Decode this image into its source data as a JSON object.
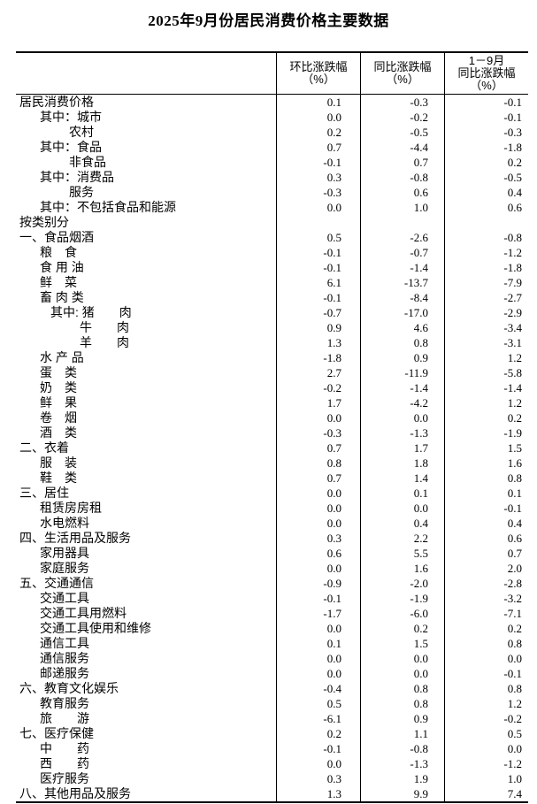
{
  "title": "2025年9月份居民消费价格主要数据",
  "table": {
    "header": {
      "mom": [
        "环比涨跌幅",
        "（%）"
      ],
      "yoy": [
        "同比涨跌幅",
        "（%）"
      ],
      "ytd": [
        "1－9月",
        "同比涨跌幅",
        "（%）"
      ]
    },
    "rows": [
      {
        "label": "居民消费价格",
        "indent": 0,
        "mom": "0.1",
        "yoy": "-0.3",
        "ytd": "-0.1"
      },
      {
        "label": "其中：城市",
        "indent": 1,
        "mom": "0.0",
        "yoy": "-0.2",
        "ytd": "-0.1"
      },
      {
        "label": "农村",
        "indent": 3,
        "mom": "0.2",
        "yoy": "-0.5",
        "ytd": "-0.3"
      },
      {
        "label": "其中：食品",
        "indent": 1,
        "mom": "0.7",
        "yoy": "-4.4",
        "ytd": "-1.8"
      },
      {
        "label": "非食品",
        "indent": 3,
        "mom": "-0.1",
        "yoy": "0.7",
        "ytd": "0.2"
      },
      {
        "label": "其中：消费品",
        "indent": 1,
        "mom": "0.3",
        "yoy": "-0.8",
        "ytd": "-0.5"
      },
      {
        "label": "服务",
        "indent": 3,
        "mom": "-0.3",
        "yoy": "0.6",
        "ytd": "0.4"
      },
      {
        "label": "其中：不包括食品和能源",
        "indent": 1,
        "mom": "0.0",
        "yoy": "1.0",
        "ytd": "0.6"
      },
      {
        "label": "按类别分",
        "indent": 0,
        "mom": "",
        "yoy": "",
        "ytd": ""
      },
      {
        "label": "一、食品烟酒",
        "indent": 0,
        "mom": "0.5",
        "yoy": "-2.6",
        "ytd": "-0.8"
      },
      {
        "label": "粮　食",
        "indent": 1,
        "mom": "-0.1",
        "yoy": "-0.7",
        "ytd": "-1.2"
      },
      {
        "label": "食 用 油",
        "indent": 1,
        "mom": "-0.1",
        "yoy": "-1.4",
        "ytd": "-1.8"
      },
      {
        "label": "鲜　菜",
        "indent": 1,
        "mom": "6.1",
        "yoy": "-13.7",
        "ytd": "-7.9"
      },
      {
        "label": "畜 肉 类",
        "indent": 1,
        "mom": "-0.1",
        "yoy": "-8.4",
        "ytd": "-2.7"
      },
      {
        "label": "其中: 猪　　肉",
        "indent": 2,
        "mom": "-0.7",
        "yoy": "-17.0",
        "ytd": "-2.9"
      },
      {
        "label": "牛　　肉",
        "indent": 4,
        "mom": "0.9",
        "yoy": "4.6",
        "ytd": "-3.4"
      },
      {
        "label": "羊　　肉",
        "indent": 4,
        "mom": "1.3",
        "yoy": "0.8",
        "ytd": "-3.1"
      },
      {
        "label": "水 产 品",
        "indent": 1,
        "mom": "-1.8",
        "yoy": "0.9",
        "ytd": "1.2"
      },
      {
        "label": "蛋　类",
        "indent": 1,
        "mom": "2.7",
        "yoy": "-11.9",
        "ytd": "-5.8"
      },
      {
        "label": "奶　类",
        "indent": 1,
        "mom": "-0.2",
        "yoy": "-1.4",
        "ytd": "-1.4"
      },
      {
        "label": "鲜　果",
        "indent": 1,
        "mom": "1.7",
        "yoy": "-4.2",
        "ytd": "1.2"
      },
      {
        "label": "卷　烟",
        "indent": 1,
        "mom": "0.0",
        "yoy": "0.0",
        "ytd": "0.2"
      },
      {
        "label": "酒　类",
        "indent": 1,
        "mom": "-0.3",
        "yoy": "-1.3",
        "ytd": "-1.9"
      },
      {
        "label": "二、衣着",
        "indent": 0,
        "mom": "0.7",
        "yoy": "1.7",
        "ytd": "1.5"
      },
      {
        "label": "服　装",
        "indent": 1,
        "mom": "0.8",
        "yoy": "1.8",
        "ytd": "1.6"
      },
      {
        "label": "鞋　类",
        "indent": 1,
        "mom": "0.7",
        "yoy": "1.4",
        "ytd": "0.8"
      },
      {
        "label": "三、居住",
        "indent": 0,
        "mom": "0.0",
        "yoy": "0.1",
        "ytd": "0.1"
      },
      {
        "label": "租赁房房租",
        "indent": 1,
        "mom": "0.0",
        "yoy": "0.0",
        "ytd": "-0.1"
      },
      {
        "label": "水电燃料",
        "indent": 1,
        "mom": "0.0",
        "yoy": "0.4",
        "ytd": "0.4"
      },
      {
        "label": "四、生活用品及服务",
        "indent": 0,
        "mom": "0.3",
        "yoy": "2.2",
        "ytd": "0.6"
      },
      {
        "label": "家用器具",
        "indent": 1,
        "mom": "0.6",
        "yoy": "5.5",
        "ytd": "0.7"
      },
      {
        "label": "家庭服务",
        "indent": 1,
        "mom": "0.0",
        "yoy": "1.6",
        "ytd": "2.0"
      },
      {
        "label": "五、交通通信",
        "indent": 0,
        "mom": "-0.9",
        "yoy": "-2.0",
        "ytd": "-2.8"
      },
      {
        "label": "交通工具",
        "indent": 1,
        "mom": "-0.1",
        "yoy": "-1.9",
        "ytd": "-3.2"
      },
      {
        "label": "交通工具用燃料",
        "indent": 1,
        "mom": "-1.7",
        "yoy": "-6.0",
        "ytd": "-7.1"
      },
      {
        "label": "交通工具使用和维修",
        "indent": 1,
        "mom": "0.0",
        "yoy": "0.2",
        "ytd": "0.2"
      },
      {
        "label": "通信工具",
        "indent": 1,
        "mom": "0.1",
        "yoy": "1.5",
        "ytd": "0.8"
      },
      {
        "label": "通信服务",
        "indent": 1,
        "mom": "0.0",
        "yoy": "0.0",
        "ytd": "0.0"
      },
      {
        "label": "邮递服务",
        "indent": 1,
        "mom": "0.0",
        "yoy": "0.0",
        "ytd": "-0.1"
      },
      {
        "label": "六、教育文化娱乐",
        "indent": 0,
        "mom": "-0.4",
        "yoy": "0.8",
        "ytd": "0.8"
      },
      {
        "label": "教育服务",
        "indent": 1,
        "mom": "0.5",
        "yoy": "0.8",
        "ytd": "1.2"
      },
      {
        "label": "旅　　游",
        "indent": 1,
        "mom": "-6.1",
        "yoy": "0.9",
        "ytd": "-0.2"
      },
      {
        "label": "七、医疗保健",
        "indent": 0,
        "mom": "0.2",
        "yoy": "1.1",
        "ytd": "0.5"
      },
      {
        "label": "中　　药",
        "indent": 1,
        "mom": "-0.1",
        "yoy": "-0.8",
        "ytd": "0.0"
      },
      {
        "label": "西　　药",
        "indent": 1,
        "mom": "0.0",
        "yoy": "-1.3",
        "ytd": "-1.2"
      },
      {
        "label": "医疗服务",
        "indent": 1,
        "mom": "0.3",
        "yoy": "1.9",
        "ytd": "1.0"
      },
      {
        "label": "八、其他用品及服务",
        "indent": 0,
        "mom": "1.3",
        "yoy": "9.9",
        "ytd": "7.4"
      }
    ]
  }
}
